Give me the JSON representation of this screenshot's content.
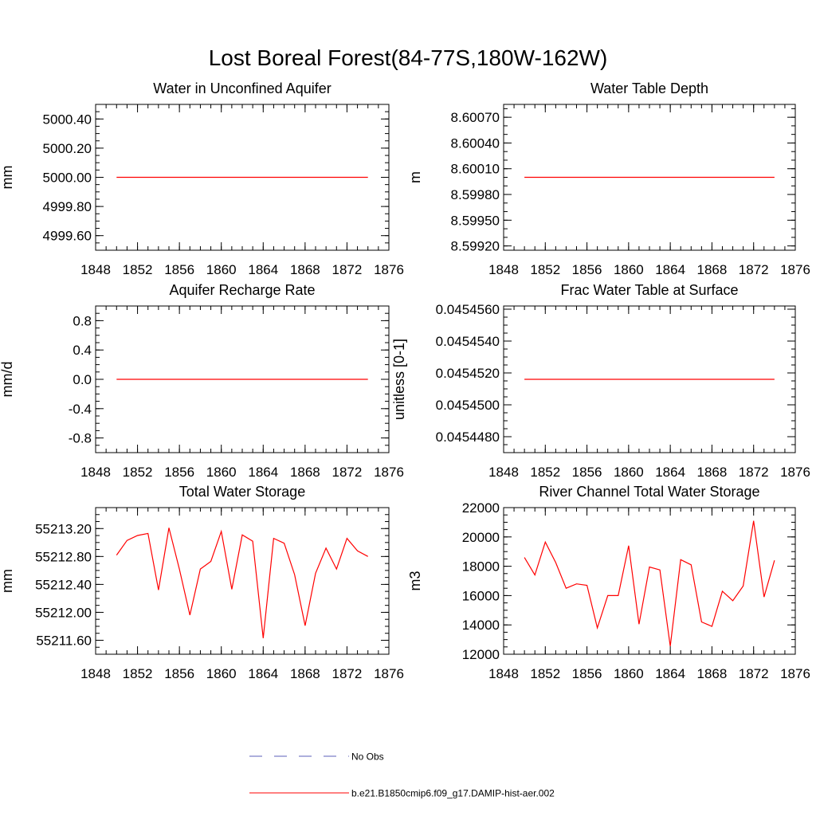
{
  "figure": {
    "title": "Lost Boreal Forest(84-77S,180W-162W)"
  },
  "legend": {
    "entries": [
      {
        "label": "No Obs",
        "color": "#5b5fb8",
        "style": "dashed"
      },
      {
        "label": "b.e21.B1850cmip6.f09_g17.DAMIP-hist-aer.002",
        "color": "#ff0000",
        "style": "solid"
      }
    ]
  },
  "chart_data": [
    {
      "type": "line",
      "title": "Water in Unconfined Aquifer",
      "ylabel": "mm",
      "xlim": [
        1848,
        1876
      ],
      "ylim": [
        4999.5,
        5000.5
      ],
      "xticks": [
        1848,
        1852,
        1856,
        1860,
        1864,
        1868,
        1872,
        1876
      ],
      "yticks": [
        4999.6,
        4999.8,
        5000.0,
        5000.2,
        5000.4
      ],
      "ytick_labels": [
        "4999.60",
        "4999.80",
        "5000.00",
        "5000.20",
        "5000.40"
      ],
      "x_minor_step": 1,
      "y_minor_step": 0.05,
      "series": [
        {
          "color": "#ff0000",
          "x": [
            1850,
            1851,
            1852,
            1853,
            1854,
            1855,
            1856,
            1857,
            1858,
            1859,
            1860,
            1861,
            1862,
            1863,
            1864,
            1865,
            1866,
            1867,
            1868,
            1869,
            1870,
            1871,
            1872,
            1873,
            1874
          ],
          "values": [
            5000,
            5000,
            5000,
            5000,
            5000,
            5000,
            5000,
            5000,
            5000,
            5000,
            5000,
            5000,
            5000,
            5000,
            5000,
            5000,
            5000,
            5000,
            5000,
            5000,
            5000,
            5000,
            5000,
            5000,
            5000
          ]
        }
      ]
    },
    {
      "type": "line",
      "title": "Water Table Depth",
      "ylabel": "m",
      "xlim": [
        1848,
        1876
      ],
      "ylim": [
        8.59915,
        8.60085
      ],
      "xticks": [
        1848,
        1852,
        1856,
        1860,
        1864,
        1868,
        1872,
        1876
      ],
      "yticks": [
        8.5992,
        8.5995,
        8.5998,
        8.6001,
        8.6004,
        8.6007
      ],
      "ytick_labels": [
        "8.59920",
        "8.59950",
        "8.59980",
        "8.60010",
        "8.60040",
        "8.60070"
      ],
      "x_minor_step": 1,
      "y_minor_step": 0.0001,
      "series": [
        {
          "color": "#ff0000",
          "x": [
            1850,
            1851,
            1852,
            1853,
            1854,
            1855,
            1856,
            1857,
            1858,
            1859,
            1860,
            1861,
            1862,
            1863,
            1864,
            1865,
            1866,
            1867,
            1868,
            1869,
            1870,
            1871,
            1872,
            1873,
            1874
          ],
          "values": [
            8.6,
            8.6,
            8.6,
            8.6,
            8.6,
            8.6,
            8.6,
            8.6,
            8.6,
            8.6,
            8.6,
            8.6,
            8.6,
            8.6,
            8.6,
            8.6,
            8.6,
            8.6,
            8.6,
            8.6,
            8.6,
            8.6,
            8.6,
            8.6,
            8.6
          ]
        }
      ]
    },
    {
      "type": "line",
      "title": "Aquifer Recharge Rate",
      "ylabel": "mm/d",
      "xlim": [
        1848,
        1876
      ],
      "ylim": [
        -1.0,
        1.0
      ],
      "xticks": [
        1848,
        1852,
        1856,
        1860,
        1864,
        1868,
        1872,
        1876
      ],
      "yticks": [
        -0.8,
        -0.4,
        0.0,
        0.4,
        0.8
      ],
      "ytick_labels": [
        "-0.8",
        "-0.4",
        "0.0",
        "0.4",
        "0.8"
      ],
      "x_minor_step": 1,
      "y_minor_step": 0.1,
      "series": [
        {
          "color": "#ff0000",
          "x": [
            1850,
            1851,
            1852,
            1853,
            1854,
            1855,
            1856,
            1857,
            1858,
            1859,
            1860,
            1861,
            1862,
            1863,
            1864,
            1865,
            1866,
            1867,
            1868,
            1869,
            1870,
            1871,
            1872,
            1873,
            1874
          ],
          "values": [
            0,
            0,
            0,
            0,
            0,
            0,
            0,
            0,
            0,
            0,
            0,
            0,
            0,
            0,
            0,
            0,
            0,
            0,
            0,
            0,
            0,
            0,
            0,
            0,
            0
          ]
        }
      ]
    },
    {
      "type": "line",
      "title": "Frac Water Table at Surface",
      "ylabel": "unitless [0-1]",
      "xlim": [
        1848,
        1876
      ],
      "ylim": [
        0.045447,
        0.0454562
      ],
      "xticks": [
        1848,
        1852,
        1856,
        1860,
        1864,
        1868,
        1872,
        1876
      ],
      "yticks": [
        0.045448,
        0.04545,
        0.045452,
        0.045454,
        0.045456
      ],
      "ytick_labels": [
        "0.0454480",
        "0.0454500",
        "0.0454520",
        "0.0454540",
        "0.0454560"
      ],
      "x_minor_step": 1,
      "y_minor_step": 5e-07,
      "series": [
        {
          "color": "#ff0000",
          "x": [
            1850,
            1851,
            1852,
            1853,
            1854,
            1855,
            1856,
            1857,
            1858,
            1859,
            1860,
            1861,
            1862,
            1863,
            1864,
            1865,
            1866,
            1867,
            1868,
            1869,
            1870,
            1871,
            1872,
            1873,
            1874
          ],
          "values": [
            0.0454516,
            0.0454516,
            0.0454516,
            0.0454516,
            0.0454516,
            0.0454516,
            0.0454516,
            0.0454516,
            0.0454516,
            0.0454516,
            0.0454516,
            0.0454516,
            0.0454516,
            0.0454516,
            0.0454516,
            0.0454516,
            0.0454516,
            0.0454516,
            0.0454516,
            0.0454516,
            0.0454516,
            0.0454516,
            0.0454516,
            0.0454516,
            0.0454516
          ]
        }
      ]
    },
    {
      "type": "line",
      "title": "Total Water Storage",
      "ylabel": "mm",
      "xlim": [
        1848,
        1876
      ],
      "ylim": [
        55211.4,
        55213.5
      ],
      "xticks": [
        1848,
        1852,
        1856,
        1860,
        1864,
        1868,
        1872,
        1876
      ],
      "yticks": [
        55211.6,
        55212.0,
        55212.4,
        55212.8,
        55213.2
      ],
      "ytick_labels": [
        "55211.60",
        "55212.00",
        "55212.40",
        "55212.80",
        "55213.20"
      ],
      "x_minor_step": 1,
      "y_minor_step": 0.1,
      "series": [
        {
          "color": "#ff0000",
          "x": [
            1850,
            1851,
            1852,
            1853,
            1854,
            1855,
            1856,
            1857,
            1858,
            1859,
            1860,
            1861,
            1862,
            1863,
            1864,
            1865,
            1866,
            1867,
            1868,
            1869,
            1870,
            1871,
            1872,
            1873,
            1874
          ],
          "values": [
            55212.82,
            55213.03,
            55213.1,
            55213.13,
            55212.32,
            55213.21,
            55212.62,
            55211.96,
            55212.62,
            55212.73,
            55213.16,
            55212.33,
            55213.11,
            55213.02,
            55211.63,
            55213.06,
            55212.99,
            55212.54,
            55211.81,
            55212.56,
            55212.92,
            55212.62,
            55213.06,
            55212.88,
            55212.8
          ]
        }
      ]
    },
    {
      "type": "line",
      "title": "River Channel Total Water Storage",
      "ylabel": "m3",
      "xlim": [
        1848,
        1876
      ],
      "ylim": [
        12000,
        22000
      ],
      "xticks": [
        1848,
        1852,
        1856,
        1860,
        1864,
        1868,
        1872,
        1876
      ],
      "yticks": [
        12000,
        14000,
        16000,
        18000,
        20000,
        22000
      ],
      "ytick_labels": [
        "12000",
        "14000",
        "16000",
        "18000",
        "20000",
        "22000"
      ],
      "x_minor_step": 1,
      "y_minor_step": 500,
      "series": [
        {
          "color": "#ff0000",
          "x": [
            1850,
            1851,
            1852,
            1853,
            1854,
            1855,
            1856,
            1857,
            1858,
            1859,
            1860,
            1861,
            1862,
            1863,
            1864,
            1865,
            1866,
            1867,
            1868,
            1869,
            1870,
            1871,
            1872,
            1873,
            1874
          ],
          "values": [
            18600,
            17400,
            19650,
            18250,
            16500,
            16800,
            16700,
            13800,
            16000,
            16000,
            19400,
            14050,
            17950,
            17750,
            12550,
            18450,
            18100,
            14200,
            13900,
            16300,
            15650,
            16650,
            21100,
            15900,
            18400
          ]
        }
      ]
    }
  ]
}
